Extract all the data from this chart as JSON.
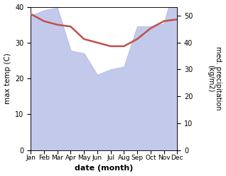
{
  "months": [
    "Jan",
    "Feb",
    "Mar",
    "Apr",
    "May",
    "Jun",
    "Jul",
    "Aug",
    "Sep",
    "Oct",
    "Nov",
    "Dec"
  ],
  "temp": [
    38,
    36,
    35,
    34.5,
    31,
    30,
    29,
    29,
    31,
    34,
    36,
    36.5
  ],
  "precip": [
    50,
    52,
    53,
    37,
    36,
    28,
    30,
    31,
    46,
    46,
    47,
    65
  ],
  "temp_color": "#c0504d",
  "precip_fill_color": "#b8c0e8",
  "temp_ylim": [
    0,
    40
  ],
  "precip_ylim": [
    0,
    53.3
  ],
  "precip_yticks": [
    0,
    10,
    20,
    30,
    40,
    50
  ],
  "temp_yticks": [
    0,
    10,
    20,
    30,
    40
  ],
  "xlabel": "date (month)",
  "ylabel_left": "max temp (C)",
  "ylabel_right": "med. precipitation\n(kg/m2)"
}
